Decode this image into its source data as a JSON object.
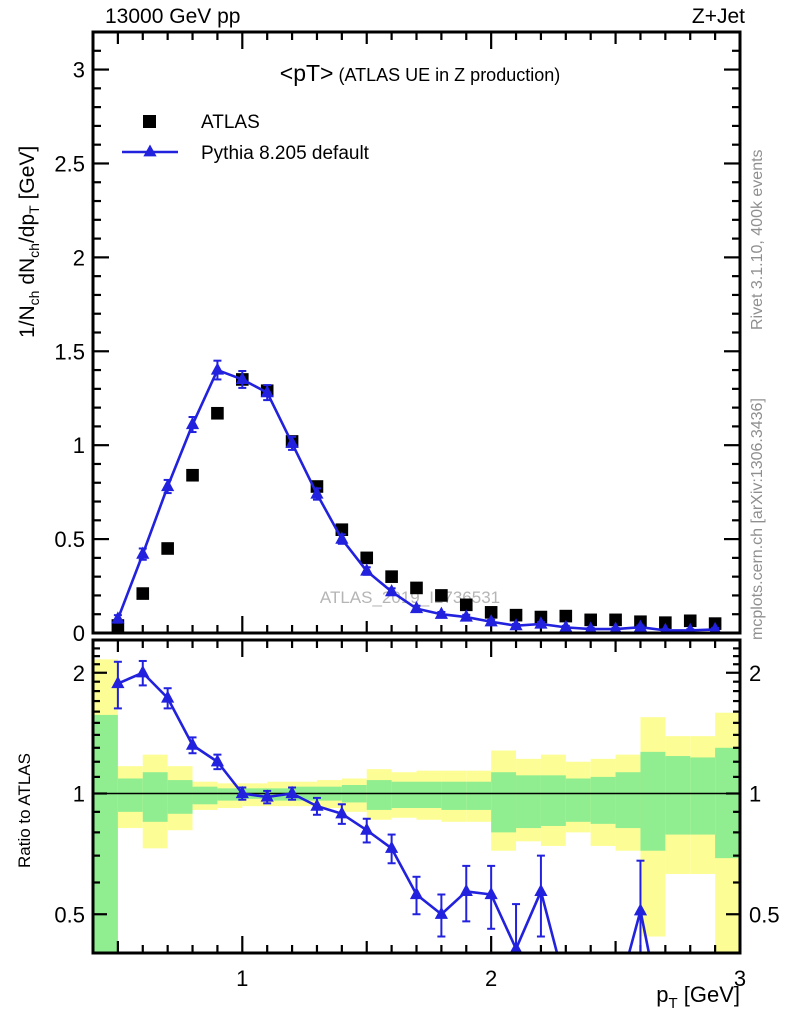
{
  "header": {
    "left": "13000 GeV pp",
    "right": "Z+Jet"
  },
  "title": {
    "main": "<pT>",
    "sub": " (ATLAS UE in Z production)"
  },
  "watermark": "ATLAS_2019_I1736531",
  "side_notes": {
    "top_right": "Rivet 3.1.10,  400k events",
    "bottom_right": "mcplots.cern.ch [arXiv:1306.3436]"
  },
  "legend": {
    "items": [
      {
        "label": "ATLAS",
        "marker": "square",
        "color": "#000000"
      },
      {
        "label": "Pythia 8.205 default",
        "marker": "triangle-line",
        "color": "#2121de"
      }
    ]
  },
  "axes": {
    "main_ylabel": {
      "p1": "1/N",
      "s1": "ch",
      "p2": " dN",
      "s2": "ch",
      "p3": "/dp",
      "s3": "T",
      "p4": " [GeV]"
    },
    "xlabel": {
      "base": "p",
      "sub": "T",
      "rest": " [GeV]"
    },
    "ratio_ylabel": "Ratio to ATLAS"
  },
  "colors": {
    "mc_blue": "#2121de",
    "band_yellow": "#fdfd96",
    "band_green": "#90ee90",
    "frame": "#000000",
    "gray_note": "#8f8f8f",
    "watermark_gray": "#b5b5b5"
  },
  "chart_data": [
    {
      "type": "scatter",
      "panel": "main",
      "title": "<pT> (ATLAS UE in Z production)",
      "xlabel": "pT [GeV]",
      "ylabel": "1/Nch dNch/dpT [GeV]",
      "xlim": [
        0.4,
        3.0
      ],
      "ylim": [
        0,
        3.2
      ],
      "grid": false,
      "legend_position": "upper-left",
      "x_ticks": [
        {
          "v": 1,
          "t": "1"
        },
        {
          "v": 2,
          "t": "2"
        },
        {
          "v": 3,
          "t": "3"
        }
      ],
      "y_ticks": [
        {
          "v": 0,
          "t": "0"
        },
        {
          "v": 0.5,
          "t": "0.5"
        },
        {
          "v": 1,
          "t": "1"
        },
        {
          "v": 1.5,
          "t": "1.5"
        },
        {
          "v": 2,
          "t": "2"
        },
        {
          "v": 2.5,
          "t": "2.5"
        },
        {
          "v": 3,
          "t": "3"
        }
      ],
      "x": [
        0.5,
        0.6,
        0.7,
        0.8,
        0.9,
        1.0,
        1.1,
        1.2,
        1.3,
        1.4,
        1.5,
        1.6,
        1.7,
        1.8,
        1.9,
        2.0,
        2.1,
        2.2,
        2.3,
        2.4,
        2.5,
        2.6,
        2.7,
        2.8,
        2.9
      ],
      "series": [
        {
          "name": "ATLAS",
          "marker": "square",
          "color": "#000000",
          "line": false,
          "values": [
            0.04,
            0.21,
            0.45,
            0.84,
            1.17,
            1.35,
            1.29,
            1.02,
            0.78,
            0.55,
            0.4,
            0.3,
            0.24,
            0.2,
            0.15,
            0.11,
            0.095,
            0.085,
            0.09,
            0.07,
            0.07,
            0.06,
            0.055,
            0.065,
            0.05
          ]
        },
        {
          "name": "Pythia 8.205 default",
          "marker": "triangle",
          "color": "#2121de",
          "line": true,
          "values": [
            0.075,
            0.42,
            0.78,
            1.11,
            1.4,
            1.35,
            1.28,
            1.01,
            0.74,
            0.5,
            0.33,
            0.22,
            0.13,
            0.1,
            0.085,
            0.06,
            0.039,
            0.048,
            0.03,
            0.021,
            0.021,
            0.031,
            0.014,
            0.014,
            0.019
          ],
          "errors": [
            0.02,
            0.03,
            0.035,
            0.04,
            0.05,
            0.045,
            0.04,
            0.035,
            0.03,
            0.025,
            0.02,
            0.018,
            0.015,
            0.012,
            0.012,
            0.01,
            0.009,
            0.01,
            0.008,
            0.007,
            0.007,
            0.009,
            0.006,
            0.006,
            0.008
          ]
        }
      ]
    },
    {
      "type": "ratio",
      "panel": "ratio",
      "ylabel": "Ratio to ATLAS",
      "yscale": "log",
      "xlim": [
        0.4,
        3.0
      ],
      "ylim": [
        0.4,
        2.41
      ],
      "reference_line": 1,
      "x_ticks": [
        {
          "v": 1,
          "t": "1"
        },
        {
          "v": 2,
          "t": "2"
        },
        {
          "v": 3,
          "t": "3"
        }
      ],
      "y_ticks": [
        {
          "v": 2,
          "t": "2"
        },
        {
          "v": 1,
          "t": "1"
        },
        {
          "v": 0.5,
          "t": "0.5"
        }
      ],
      "x": [
        0.5,
        0.6,
        0.7,
        0.8,
        0.9,
        1.0,
        1.1,
        1.2,
        1.3,
        1.4,
        1.5,
        1.6,
        1.7,
        1.8,
        1.9,
        2.0,
        2.1,
        2.2,
        2.3,
        2.4,
        2.5,
        2.6,
        2.7,
        2.8,
        2.9
      ],
      "values": [
        1.88,
        2.0,
        1.73,
        1.32,
        1.2,
        1.0,
        0.98,
        1.0,
        0.93,
        0.89,
        0.81,
        0.73,
        0.56,
        0.5,
        0.57,
        0.56,
        0.41,
        0.57,
        0.33,
        0.3,
        0.3,
        0.51,
        0.25,
        0.22,
        0.38
      ],
      "errors": [
        0.25,
        0.14,
        0.1,
        0.06,
        0.05,
        0.035,
        0.035,
        0.035,
        0.045,
        0.05,
        0.055,
        0.06,
        0.06,
        0.06,
        0.09,
        0.1,
        0.12,
        0.13,
        0.1,
        0.1,
        0.1,
        0.17,
        0.1,
        0.1,
        0.1
      ],
      "bands": {
        "bin_edges": [
          0.4,
          0.5,
          0.6,
          0.7,
          0.8,
          0.9,
          1.0,
          1.1,
          1.2,
          1.3,
          1.4,
          1.5,
          1.6,
          1.7,
          1.8,
          1.9,
          2.0,
          2.1,
          2.2,
          2.3,
          2.4,
          2.5,
          2.6,
          2.7,
          2.8,
          2.9,
          3.0
        ],
        "yellow": [
          [
            0.38,
            2.16
          ],
          [
            0.82,
            1.17
          ],
          [
            0.73,
            1.25
          ],
          [
            0.81,
            1.17
          ],
          [
            0.91,
            1.07
          ],
          [
            0.92,
            1.06
          ],
          [
            0.93,
            1.06
          ],
          [
            0.93,
            1.07
          ],
          [
            0.93,
            1.07
          ],
          [
            0.92,
            1.08
          ],
          [
            0.9,
            1.09
          ],
          [
            0.86,
            1.15
          ],
          [
            0.87,
            1.13
          ],
          [
            0.86,
            1.14
          ],
          [
            0.85,
            1.14
          ],
          [
            0.85,
            1.14
          ],
          [
            0.72,
            1.28
          ],
          [
            0.76,
            1.22
          ],
          [
            0.74,
            1.25
          ],
          [
            0.8,
            1.2
          ],
          [
            0.74,
            1.22
          ],
          [
            0.72,
            1.25
          ],
          [
            0.44,
            1.55
          ],
          [
            0.63,
            1.39
          ],
          [
            0.63,
            1.39
          ],
          [
            0.4,
            1.59
          ]
        ],
        "green": [
          [
            0.4,
            1.57
          ],
          [
            0.9,
            1.09
          ],
          [
            0.85,
            1.13
          ],
          [
            0.89,
            1.08
          ],
          [
            0.94,
            1.04
          ],
          [
            0.96,
            1.03
          ],
          [
            0.97,
            1.03
          ],
          [
            0.96,
            1.03
          ],
          [
            0.96,
            1.04
          ],
          [
            0.96,
            1.04
          ],
          [
            0.95,
            1.05
          ],
          [
            0.91,
            1.08
          ],
          [
            0.92,
            1.07
          ],
          [
            0.92,
            1.07
          ],
          [
            0.91,
            1.07
          ],
          [
            0.91,
            1.07
          ],
          [
            0.8,
            1.13
          ],
          [
            0.82,
            1.11
          ],
          [
            0.83,
            1.11
          ],
          [
            0.85,
            1.09
          ],
          [
            0.84,
            1.1
          ],
          [
            0.82,
            1.13
          ],
          [
            0.72,
            1.27
          ],
          [
            0.79,
            1.24
          ],
          [
            0.79,
            1.23
          ],
          [
            0.69,
            1.3
          ]
        ]
      },
      "band_colors": {
        "yellow": "#fdfd96",
        "green": "#90ee90"
      }
    }
  ]
}
